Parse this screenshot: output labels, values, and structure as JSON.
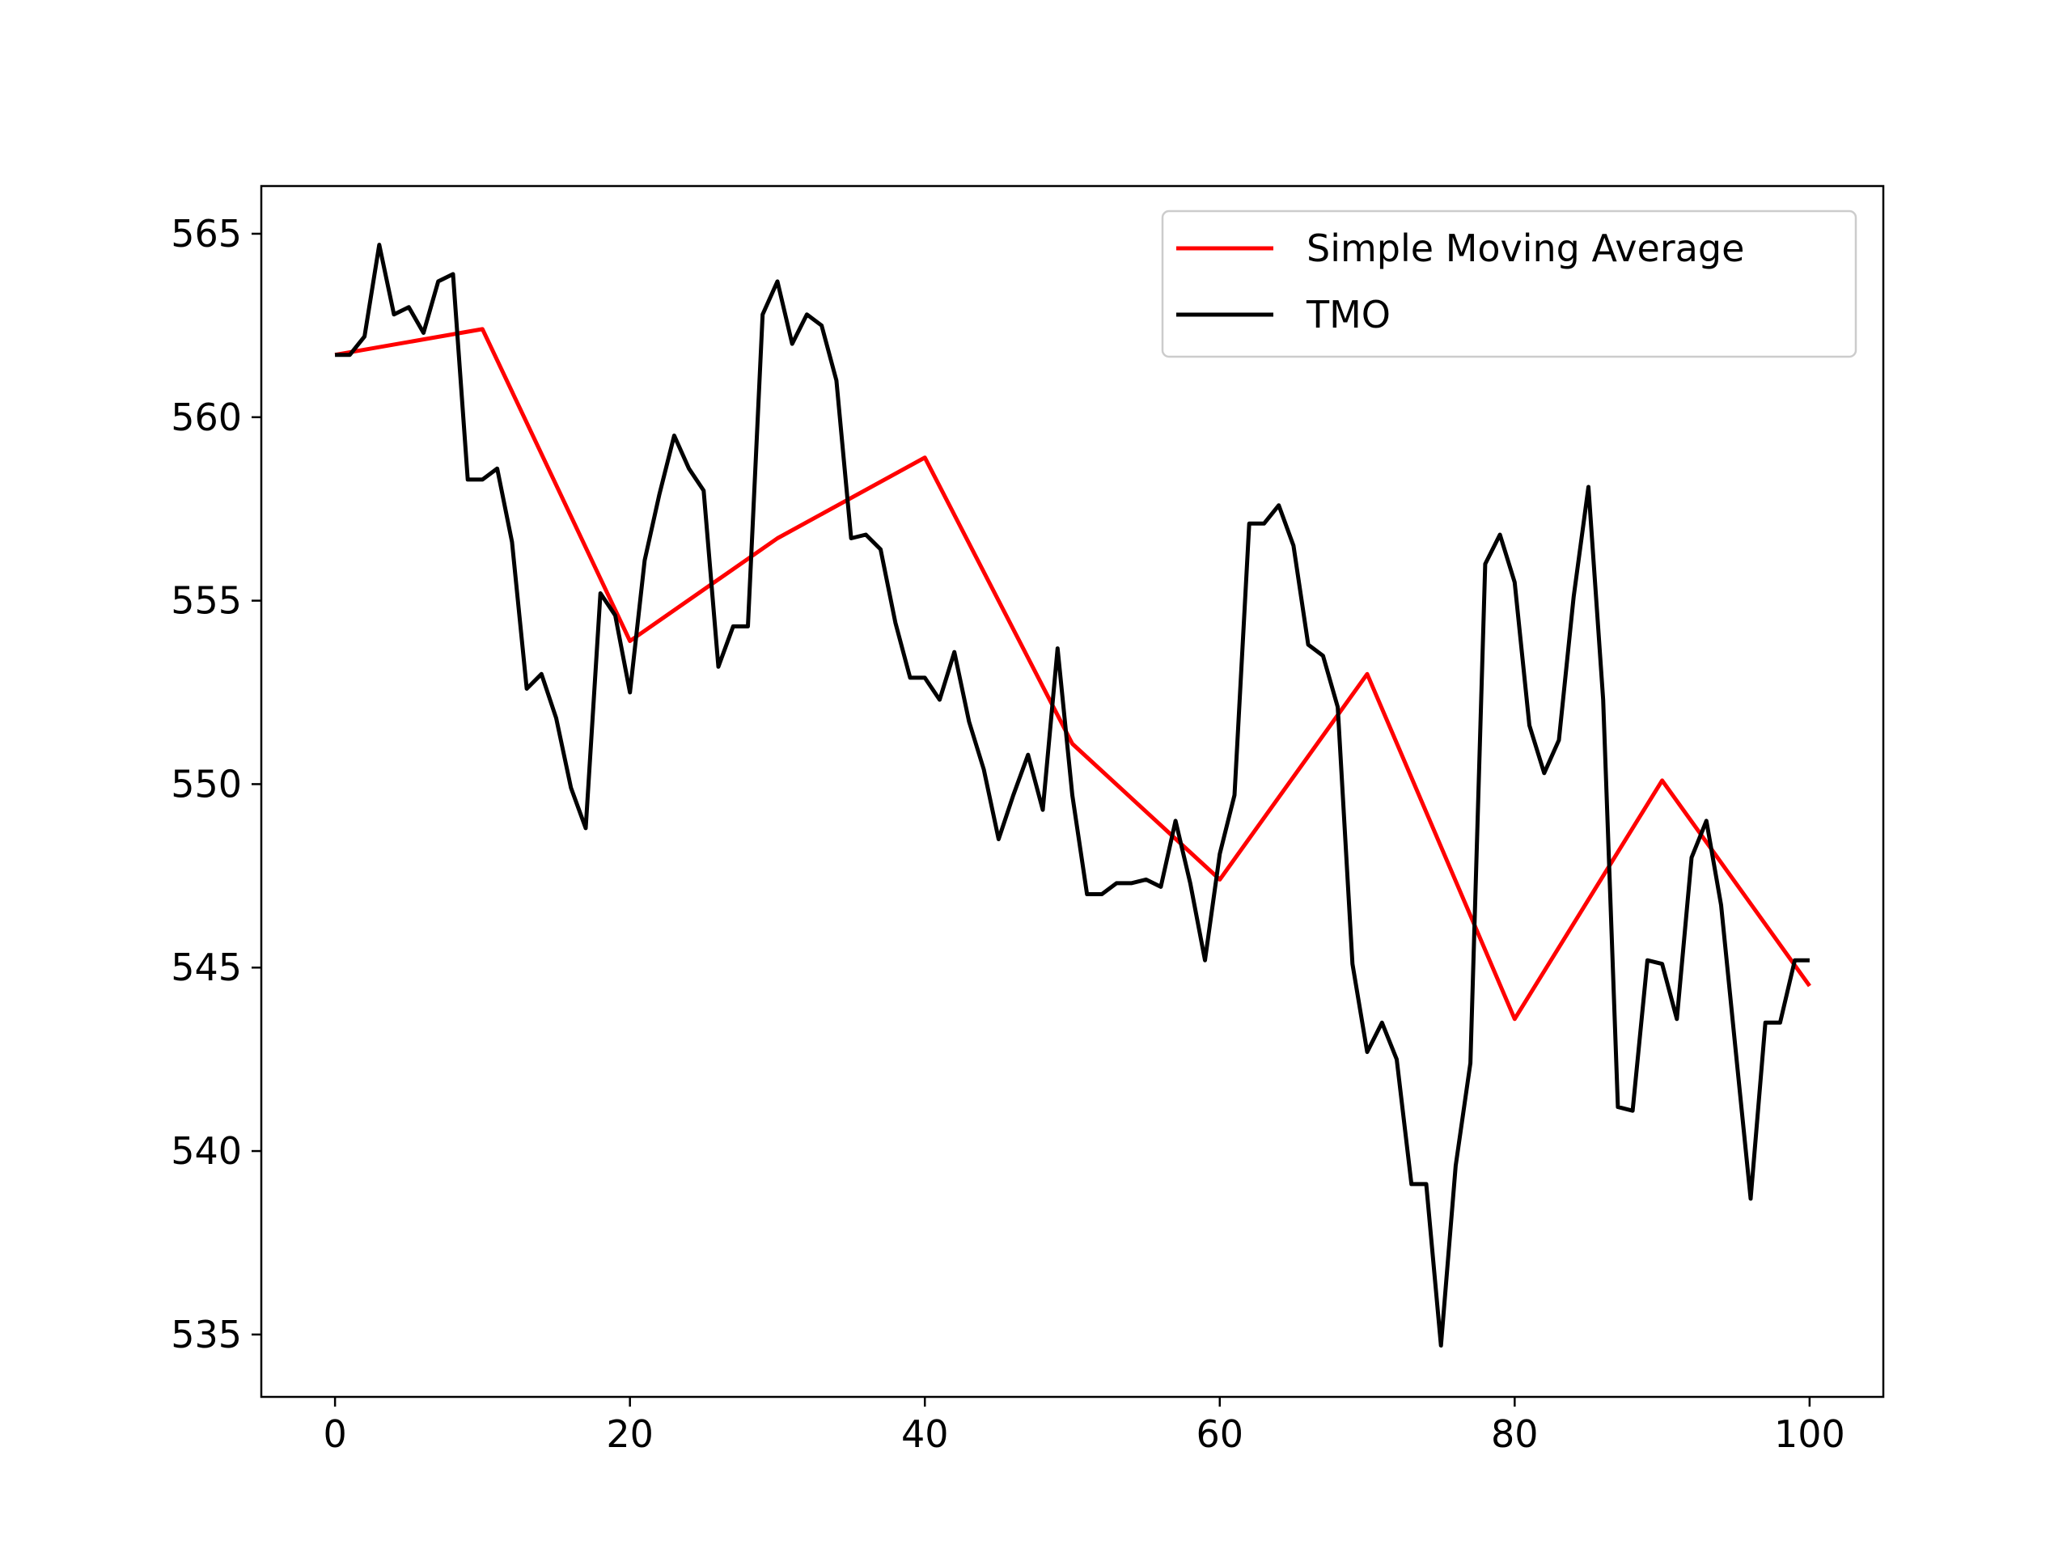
{
  "chart_data": {
    "type": "line",
    "title": "",
    "xlabel": "",
    "ylabel": "",
    "xlim": [
      -5,
      105
    ],
    "ylim": [
      533.3,
      566.3
    ],
    "xticks": [
      0,
      20,
      40,
      60,
      80,
      100
    ],
    "yticks": [
      535,
      540,
      545,
      550,
      555,
      560,
      565
    ],
    "grid": false,
    "legend": {
      "position": "top-right"
    },
    "series": [
      {
        "name": "Simple Moving Average",
        "color": "#ff0000",
        "x": [
          0,
          10,
          20,
          30,
          40,
          50,
          60,
          70,
          80,
          90,
          100
        ],
        "y": [
          561.7,
          562.4,
          553.9,
          556.7,
          558.9,
          551.1,
          547.4,
          553.0,
          543.6,
          550.1,
          544.5
        ]
      },
      {
        "name": "TMO",
        "color": "#000000",
        "x": [
          0,
          1,
          2,
          3,
          4,
          5,
          6,
          7,
          8,
          9,
          10,
          11,
          12,
          13,
          14,
          15,
          16,
          17,
          18,
          19,
          20,
          21,
          22,
          23,
          24,
          25,
          26,
          27,
          28,
          29,
          30,
          31,
          32,
          33,
          34,
          35,
          36,
          37,
          38,
          39,
          40,
          41,
          42,
          43,
          44,
          45,
          46,
          47,
          48,
          49,
          50,
          51,
          52,
          53,
          54,
          55,
          56,
          57,
          58,
          59,
          60,
          61,
          62,
          63,
          64,
          65,
          66,
          67,
          68,
          69,
          70,
          71,
          72,
          73,
          74,
          75,
          76,
          77,
          78,
          79,
          80,
          81,
          82,
          83,
          84,
          85,
          86,
          87,
          88,
          89,
          90,
          91,
          92,
          93,
          94,
          95,
          96,
          97,
          98,
          99,
          100
        ],
        "y": [
          561.7,
          561.7,
          562.2,
          564.7,
          562.8,
          563.0,
          562.3,
          563.7,
          563.9,
          558.3,
          558.3,
          558.6,
          556.6,
          552.6,
          553.0,
          551.8,
          549.9,
          548.8,
          555.2,
          554.6,
          552.5,
          556.1,
          557.9,
          559.5,
          558.6,
          558.0,
          553.2,
          554.3,
          554.3,
          562.8,
          563.7,
          562.0,
          562.8,
          562.5,
          561.0,
          556.7,
          556.8,
          556.4,
          554.4,
          552.9,
          552.9,
          552.3,
          553.6,
          551.7,
          550.4,
          548.5,
          549.7,
          550.8,
          549.3,
          553.7,
          549.7,
          547.0,
          547.0,
          547.3,
          547.3,
          547.4,
          547.2,
          549.0,
          547.3,
          545.2,
          548.1,
          549.7,
          557.1,
          557.1,
          557.6,
          556.5,
          553.8,
          553.5,
          552.1,
          545.1,
          542.7,
          543.5,
          542.5,
          539.1,
          539.1,
          534.7,
          539.6,
          542.4,
          556.0,
          556.8,
          555.5,
          551.6,
          550.3,
          551.2,
          555.1,
          558.1,
          552.3,
          541.2,
          541.1,
          545.2,
          545.1,
          543.6,
          548.0,
          549.0,
          546.7,
          542.7,
          538.7,
          543.5,
          543.5,
          545.2,
          545.2
        ]
      }
    ]
  }
}
